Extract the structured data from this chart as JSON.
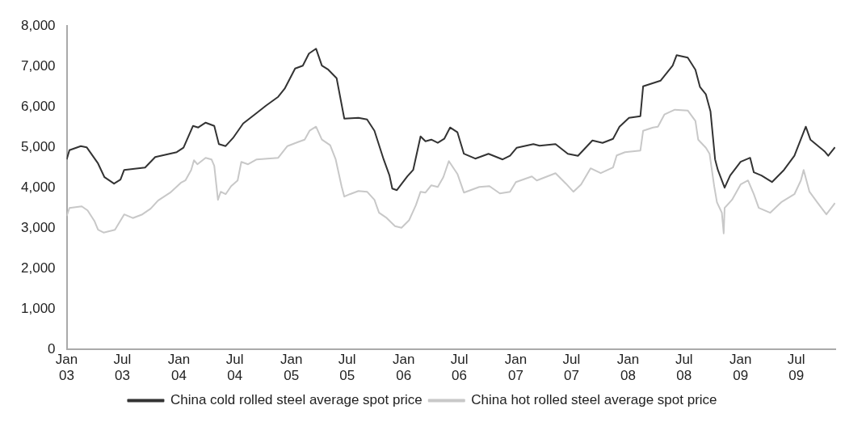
{
  "chart_data": {
    "type": "line",
    "x": [
      "2003-01-01",
      "2003-01-10",
      "2003-02-16",
      "2003-03-07",
      "2003-04-13",
      "2003-05-04",
      "2003-06-04",
      "2003-06-25",
      "2003-07-07",
      "2003-09-13",
      "2003-10-16",
      "2003-12-25",
      "2004-01-16",
      "2004-02-16",
      "2004-03-04",
      "2004-03-28",
      "2004-04-25",
      "2004-05-10",
      "2004-06-01",
      "2004-06-25",
      "2004-07-28",
      "2004-09-10",
      "2004-10-10",
      "2004-11-19",
      "2004-12-10",
      "2005-01-13",
      "2005-02-07",
      "2005-02-27",
      "2005-03-22",
      "2005-04-10",
      "2005-05-01",
      "2005-05-28",
      "2005-06-22",
      "2005-08-07",
      "2005-09-04",
      "2005-09-28",
      "2005-10-28",
      "2005-11-16",
      "2005-11-25",
      "2005-12-10",
      "2006-01-13",
      "2006-02-01",
      "2006-02-25",
      "2006-03-13",
      "2006-04-01",
      "2006-04-22",
      "2006-05-13",
      "2006-06-01",
      "2006-06-25",
      "2006-07-16",
      "2006-08-22",
      "2006-10-04",
      "2006-11-19",
      "2006-12-13",
      "2007-01-04",
      "2007-02-27",
      "2007-03-19",
      "2007-05-10",
      "2007-06-19",
      "2007-07-22",
      "2007-09-07",
      "2007-10-10",
      "2007-11-13",
      "2007-12-04",
      "2008-01-04",
      "2008-02-10",
      "2008-02-19",
      "2008-04-16",
      "2008-05-25",
      "2008-06-07",
      "2008-07-13",
      "2008-08-07",
      "2008-08-22",
      "2008-09-10",
      "2008-09-25",
      "2008-10-10",
      "2008-10-19",
      "2008-11-10",
      "2008-11-28",
      "2009-01-01",
      "2009-02-01",
      "2009-02-13",
      "2009-03-10",
      "2009-04-13",
      "2009-05-22",
      "2009-06-25",
      "2009-08-01",
      "2009-08-16",
      "2009-10-01",
      "2009-10-13",
      "2009-11-04"
    ],
    "series": [
      {
        "name": "China cold rolled steel average spot price",
        "color": "#333333",
        "values": [
          4700,
          4930,
          5030,
          5000,
          4600,
          4260,
          4100,
          4200,
          4440,
          4500,
          4760,
          4880,
          4990,
          5530,
          5490,
          5610,
          5530,
          5080,
          5030,
          5230,
          5590,
          5850,
          6030,
          6250,
          6450,
          6950,
          7020,
          7320,
          7440,
          7020,
          6920,
          6710,
          5710,
          5730,
          5690,
          5410,
          4700,
          4300,
          3980,
          3940,
          4280,
          4440,
          5270,
          5150,
          5190,
          5110,
          5210,
          5490,
          5370,
          4840,
          4720,
          4840,
          4700,
          4790,
          4990,
          5080,
          5040,
          5080,
          4840,
          4790,
          5170,
          5110,
          5210,
          5510,
          5730,
          5770,
          6510,
          6650,
          7020,
          7280,
          7220,
          6920,
          6490,
          6310,
          5890,
          4700,
          4440,
          4000,
          4300,
          4640,
          4740,
          4380,
          4300,
          4140,
          4440,
          4790,
          5510,
          5190,
          4900,
          4790,
          5000
        ]
      },
      {
        "name": "China hot rolled steel average spot price",
        "color": "#c8c8c8",
        "x": [
          "2003-01-01",
          "2003-01-10",
          "2003-02-19",
          "2003-03-10",
          "2003-04-01",
          "2003-04-13",
          "2003-05-01",
          "2003-06-07",
          "2003-07-07",
          "2003-08-04",
          "2003-09-04",
          "2003-10-01",
          "2003-10-25",
          "2003-12-04",
          "2004-01-07",
          "2004-01-22",
          "2004-02-10",
          "2004-02-19",
          "2004-03-01",
          "2004-03-28",
          "2004-04-16",
          "2004-04-25",
          "2004-05-07",
          "2004-05-16",
          "2004-06-01",
          "2004-06-19",
          "2004-07-10",
          "2004-07-22",
          "2004-08-13",
          "2004-09-10",
          "2004-11-19",
          "2004-12-19",
          "2005-01-22",
          "2005-02-13",
          "2005-03-01",
          "2005-03-22",
          "2005-04-10",
          "2005-05-07",
          "2005-05-25",
          "2005-06-13",
          "2005-06-22",
          "2005-07-10",
          "2005-08-07",
          "2005-09-04",
          "2005-09-28",
          "2005-10-13",
          "2005-11-07",
          "2005-12-04",
          "2005-12-25",
          "2006-01-19",
          "2006-02-10",
          "2006-02-25",
          "2006-03-13",
          "2006-04-01",
          "2006-04-22",
          "2006-05-10",
          "2006-05-28",
          "2006-06-25",
          "2006-07-16",
          "2006-09-04",
          "2006-10-07",
          "2006-11-10",
          "2006-12-13",
          "2007-01-01",
          "2007-02-22",
          "2007-03-10",
          "2007-05-10",
          "2007-06-13",
          "2007-07-07",
          "2007-08-01",
          "2007-09-01",
          "2007-10-04",
          "2007-11-13",
          "2007-11-25",
          "2007-12-22",
          "2008-02-10",
          "2008-02-19",
          "2008-03-22",
          "2008-04-07",
          "2008-04-28",
          "2008-06-01",
          "2008-07-13",
          "2008-08-07",
          "2008-08-16",
          "2008-09-10",
          "2008-09-22",
          "2008-10-07",
          "2008-10-16",
          "2008-11-01",
          "2008-11-07",
          "2008-11-10",
          "2008-12-04",
          "2009-01-01",
          "2009-01-25",
          "2009-02-13",
          "2009-03-01",
          "2009-04-07",
          "2009-05-13",
          "2009-06-25",
          "2009-07-16",
          "2009-07-25",
          "2009-08-13",
          "2009-09-07",
          "2009-10-07",
          "2009-11-04"
        ],
        "values": [
          3300,
          3500,
          3540,
          3440,
          3180,
          2960,
          2890,
          2960,
          3340,
          3250,
          3340,
          3480,
          3680,
          3880,
          4120,
          4180,
          4440,
          4680,
          4580,
          4740,
          4700,
          4540,
          3700,
          3900,
          3840,
          4040,
          4180,
          4640,
          4580,
          4700,
          4740,
          5030,
          5130,
          5190,
          5410,
          5510,
          5190,
          5050,
          4700,
          4040,
          3780,
          3840,
          3920,
          3900,
          3700,
          3380,
          3250,
          3050,
          3010,
          3200,
          3570,
          3900,
          3880,
          4060,
          4020,
          4260,
          4660,
          4340,
          3880,
          4020,
          4040,
          3860,
          3900,
          4140,
          4280,
          4180,
          4360,
          4100,
          3900,
          4080,
          4480,
          4360,
          4500,
          4800,
          4880,
          4920,
          5410,
          5490,
          5510,
          5810,
          5930,
          5910,
          5650,
          5190,
          4990,
          4840,
          4040,
          3640,
          3380,
          2870,
          3500,
          3700,
          4080,
          4180,
          3840,
          3500,
          3380,
          3640,
          3840,
          4180,
          4440,
          3900,
          3640,
          3340,
          3620
        ]
      }
    ],
    "xlim": [
      "2003-01-01",
      "2009-11-05"
    ],
    "xticks": [
      {
        "value": "2003-01-01",
        "label": "Jan 03"
      },
      {
        "value": "2003-07-01",
        "label": "Jul 03"
      },
      {
        "value": "2004-01-01",
        "label": "Jan 04"
      },
      {
        "value": "2004-07-01",
        "label": "Jul 04"
      },
      {
        "value": "2005-01-01",
        "label": "Jan 05"
      },
      {
        "value": "2005-07-01",
        "label": "Jul 05"
      },
      {
        "value": "2006-01-01",
        "label": "Jan 06"
      },
      {
        "value": "2006-07-01",
        "label": "Jul 06"
      },
      {
        "value": "2007-01-01",
        "label": "Jan 07"
      },
      {
        "value": "2007-07-01",
        "label": "Jul 07"
      },
      {
        "value": "2008-01-01",
        "label": "Jan 08"
      },
      {
        "value": "2008-07-01",
        "label": "Jul 08"
      },
      {
        "value": "2009-01-01",
        "label": "Jan 09"
      },
      {
        "value": "2009-07-01",
        "label": "Jul 09"
      }
    ],
    "ylim": [
      0,
      8000
    ],
    "yticks": [
      {
        "value": 0,
        "label": "0"
      },
      {
        "value": 1000,
        "label": "1,000"
      },
      {
        "value": 2000,
        "label": "2,000"
      },
      {
        "value": 3000,
        "label": "3,000"
      },
      {
        "value": 4000,
        "label": "4,000"
      },
      {
        "value": 5000,
        "label": "5,000"
      },
      {
        "value": 6000,
        "label": "6,000"
      },
      {
        "value": 7000,
        "label": "7,000"
      },
      {
        "value": 8000,
        "label": "8,000"
      }
    ],
    "grid": false,
    "legend": "bottom",
    "marker": "none",
    "line_style": "solid"
  }
}
